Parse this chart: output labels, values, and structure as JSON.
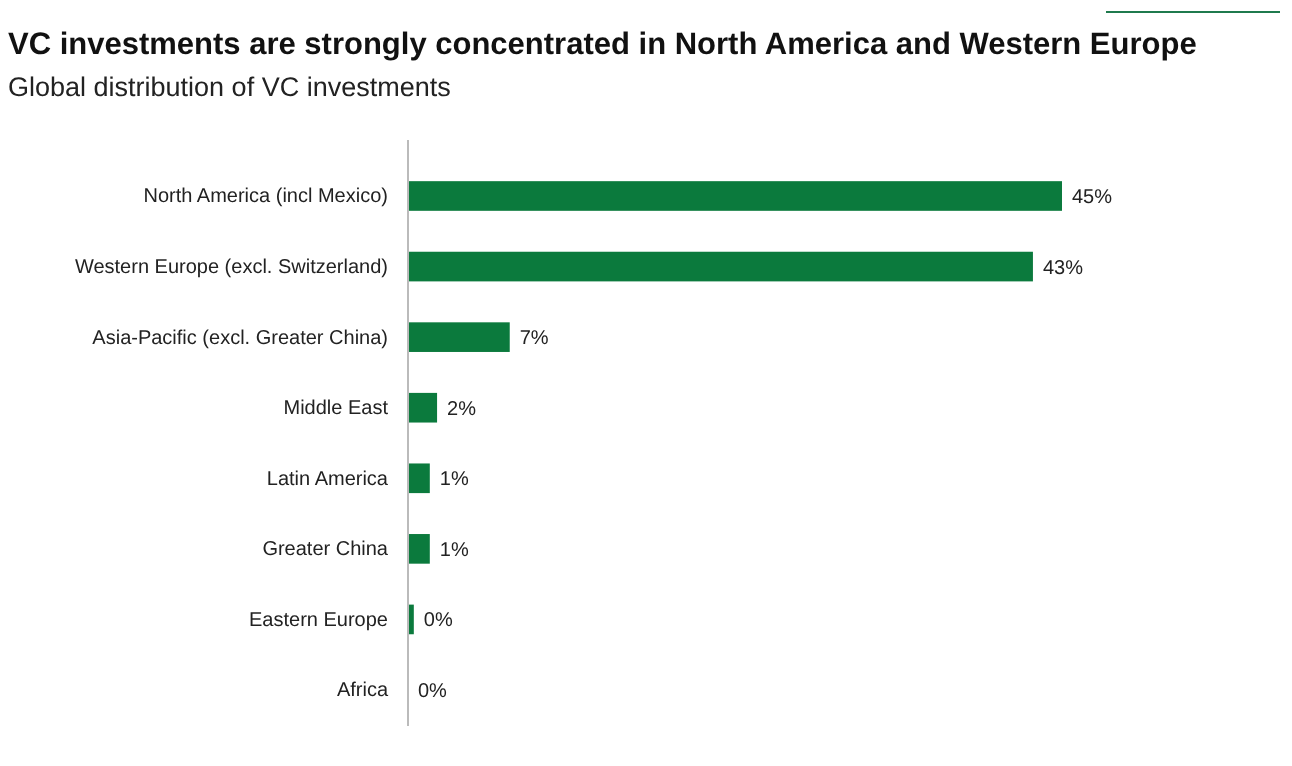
{
  "chart_data": {
    "type": "bar",
    "orientation": "horizontal",
    "title": "VC investments are strongly concentrated in North America and Western Europe",
    "subtitle": "Global distribution of VC investments",
    "categories": [
      "North America (incl Mexico)",
      "Western Europe (excl. Switzerland)",
      "Asia-Pacific (excl. Greater China)",
      "Middle East",
      "Latin America",
      "Greater China",
      "Eastern Europe",
      "Africa"
    ],
    "values": [
      45,
      43,
      7,
      2,
      1.5,
      1.5,
      0.4,
      0
    ],
    "value_labels": [
      "45%",
      "43%",
      "7%",
      "2%",
      "1%",
      "1%",
      "0%",
      "0%"
    ],
    "color": "#0b7a3d"
  }
}
